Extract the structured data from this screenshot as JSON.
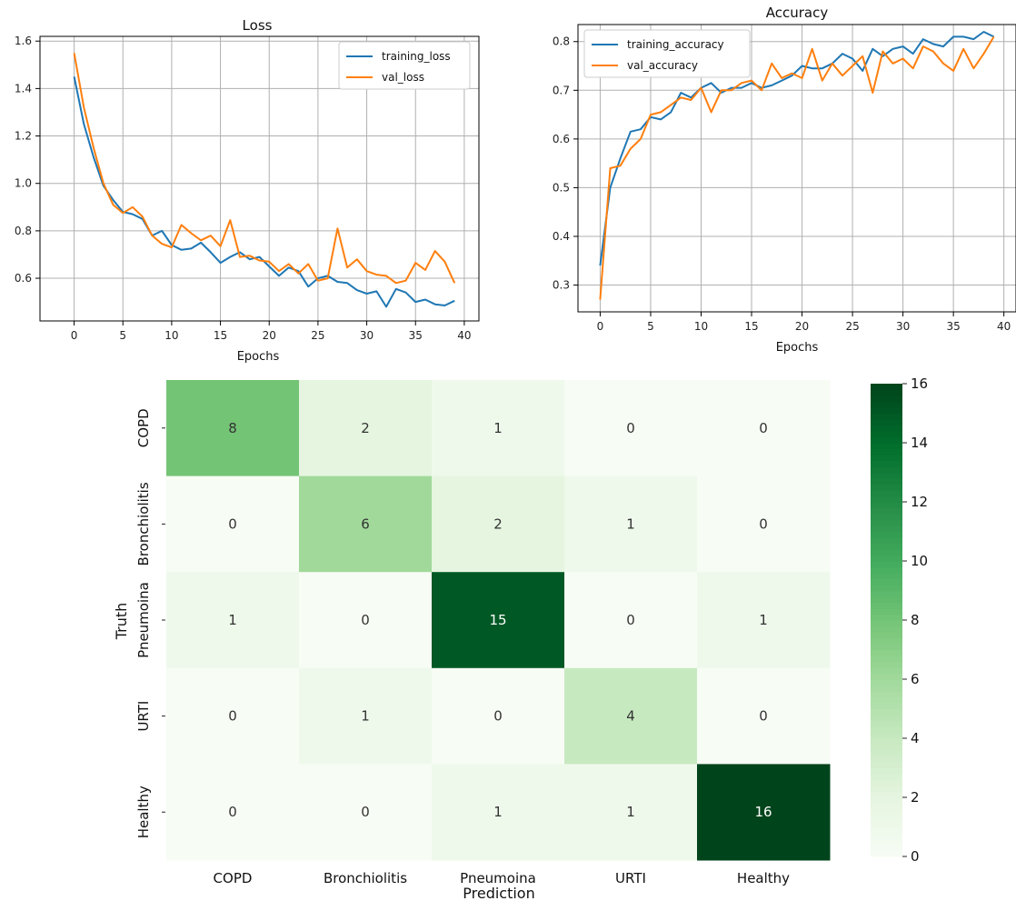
{
  "chart_data": [
    {
      "type": "line",
      "title": "Loss",
      "xlabel": "Epochs",
      "ylabel": "",
      "xlim": [
        -3.5,
        41.5
      ],
      "ylim": [
        0.42,
        1.62
      ],
      "xticks": [
        0,
        5,
        10,
        15,
        20,
        25,
        30,
        35,
        40
      ],
      "yticks": [
        0.6,
        0.8,
        1.0,
        1.2,
        1.4,
        1.6
      ],
      "grid": true,
      "legend_position": "top-right",
      "x": [
        0,
        1,
        2,
        3,
        4,
        5,
        6,
        7,
        8,
        9,
        10,
        11,
        12,
        13,
        14,
        15,
        16,
        17,
        18,
        19,
        20,
        21,
        22,
        23,
        24,
        25,
        26,
        27,
        28,
        29,
        30,
        31,
        32,
        33,
        34,
        35,
        36,
        37,
        38,
        39
      ],
      "series": [
        {
          "name": "training_loss",
          "color": "#1f77b4",
          "values": [
            1.45,
            1.25,
            1.11,
            0.99,
            0.93,
            0.88,
            0.87,
            0.85,
            0.78,
            0.8,
            0.74,
            0.72,
            0.725,
            0.75,
            0.71,
            0.665,
            0.69,
            0.71,
            0.68,
            0.69,
            0.65,
            0.61,
            0.645,
            0.63,
            0.565,
            0.6,
            0.61,
            0.585,
            0.58,
            0.55,
            0.535,
            0.545,
            0.48,
            0.555,
            0.54,
            0.5,
            0.51,
            0.49,
            0.485,
            0.505
          ]
        },
        {
          "name": "val_loss",
          "color": "#ff7f0e",
          "values": [
            1.55,
            1.32,
            1.15,
            1.0,
            0.91,
            0.875,
            0.9,
            0.86,
            0.78,
            0.745,
            0.73,
            0.825,
            0.79,
            0.76,
            0.78,
            0.735,
            0.845,
            0.69,
            0.695,
            0.675,
            0.67,
            0.63,
            0.66,
            0.62,
            0.66,
            0.59,
            0.6,
            0.81,
            0.645,
            0.68,
            0.63,
            0.615,
            0.61,
            0.58,
            0.59,
            0.665,
            0.635,
            0.715,
            0.67,
            0.58
          ]
        }
      ]
    },
    {
      "type": "line",
      "title": "Accuracy",
      "xlabel": "Epochs",
      "ylabel": "",
      "xlim": [
        -2.2,
        41.2
      ],
      "ylim": [
        0.245,
        0.835
      ],
      "xticks": [
        0,
        5,
        10,
        15,
        20,
        25,
        30,
        35,
        40
      ],
      "yticks": [
        0.3,
        0.4,
        0.5,
        0.6,
        0.7,
        0.8
      ],
      "grid": true,
      "legend_position": "top-left",
      "x": [
        0,
        1,
        2,
        3,
        4,
        5,
        6,
        7,
        8,
        9,
        10,
        11,
        12,
        13,
        14,
        15,
        16,
        17,
        18,
        19,
        20,
        21,
        22,
        23,
        24,
        25,
        26,
        27,
        28,
        29,
        30,
        31,
        32,
        33,
        34,
        35,
        36,
        37,
        38,
        39
      ],
      "series": [
        {
          "name": "training_accuracy",
          "color": "#1f77b4",
          "values": [
            0.34,
            0.5,
            0.56,
            0.615,
            0.62,
            0.645,
            0.64,
            0.655,
            0.695,
            0.685,
            0.705,
            0.715,
            0.695,
            0.705,
            0.705,
            0.715,
            0.705,
            0.71,
            0.72,
            0.73,
            0.75,
            0.745,
            0.745,
            0.755,
            0.775,
            0.765,
            0.74,
            0.785,
            0.77,
            0.785,
            0.79,
            0.775,
            0.805,
            0.795,
            0.79,
            0.81,
            0.81,
            0.805,
            0.82,
            0.81
          ]
        },
        {
          "name": "val_accuracy",
          "color": "#ff7f0e",
          "values": [
            0.27,
            0.54,
            0.545,
            0.58,
            0.6,
            0.65,
            0.655,
            0.67,
            0.685,
            0.68,
            0.705,
            0.655,
            0.7,
            0.7,
            0.715,
            0.72,
            0.7,
            0.755,
            0.725,
            0.735,
            0.725,
            0.785,
            0.72,
            0.755,
            0.73,
            0.75,
            0.77,
            0.695,
            0.78,
            0.755,
            0.765,
            0.745,
            0.79,
            0.78,
            0.755,
            0.74,
            0.785,
            0.745,
            0.775,
            0.81
          ]
        }
      ]
    },
    {
      "type": "heatmap",
      "title": "",
      "xlabel": "Prediction",
      "ylabel": "Truth",
      "x_categories": [
        "COPD",
        "Bronchiolitis",
        "Pneumoina",
        "URTI",
        "Healthy"
      ],
      "y_categories": [
        "COPD",
        "Bronchiolitis",
        "Pneumoina",
        "URTI",
        "Healthy"
      ],
      "values": [
        [
          8,
          2,
          1,
          0,
          0
        ],
        [
          0,
          6,
          2,
          1,
          0
        ],
        [
          1,
          0,
          15,
          0,
          1
        ],
        [
          0,
          1,
          0,
          4,
          0
        ],
        [
          0,
          0,
          1,
          1,
          16
        ]
      ],
      "colormap": "Greens",
      "colorbar_range": [
        0,
        16
      ],
      "colorbar_ticks": [
        0,
        2,
        4,
        6,
        8,
        10,
        12,
        14,
        16
      ]
    }
  ]
}
